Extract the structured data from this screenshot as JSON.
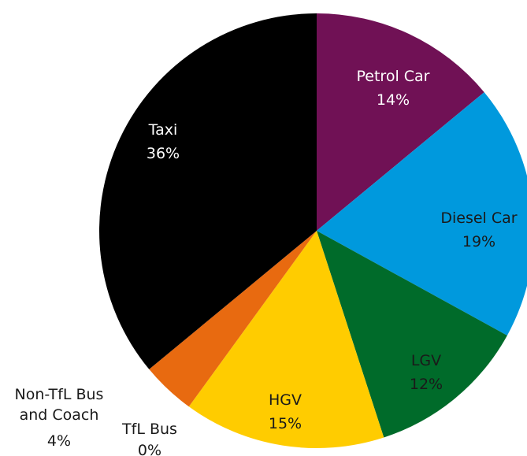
{
  "chart_data": {
    "type": "pie",
    "categories": [
      "Petrol Car",
      "Diesel Car",
      "LGV",
      "HGV",
      "TfL Bus",
      "Non-TfL Bus and Coach",
      "Taxi"
    ],
    "values": [
      14,
      19,
      12,
      15,
      0,
      4,
      36
    ],
    "value_labels": [
      "14%",
      "19%",
      "12%",
      "15%",
      "0%",
      "4%",
      "36%"
    ],
    "colors": [
      "#701155",
      "#0099dd",
      "#006b2a",
      "#ffcc00",
      "#dc241f",
      "#e86a10",
      "#000000"
    ]
  }
}
